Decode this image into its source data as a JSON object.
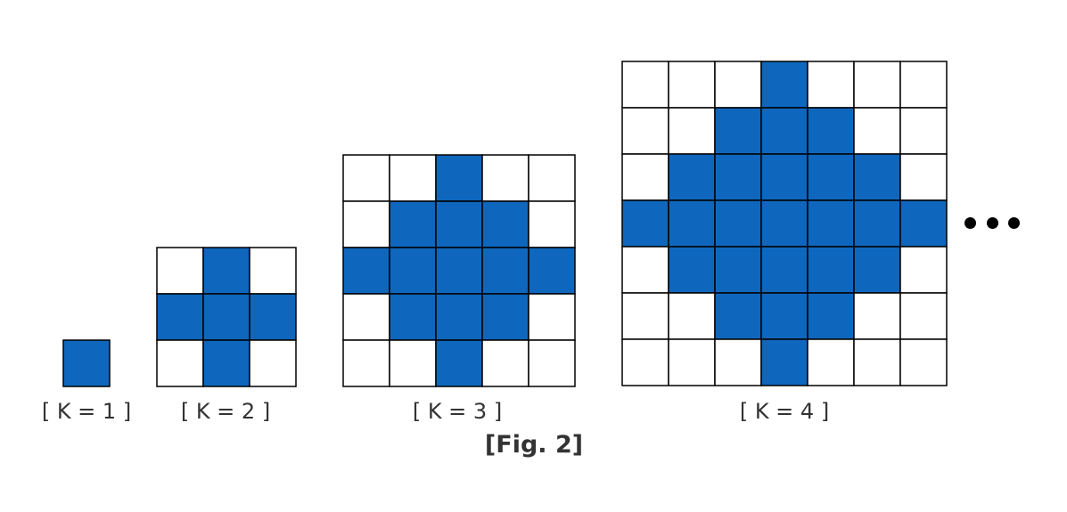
{
  "figure": {
    "caption": "[Fig. 2]",
    "continuation": "ellipsis",
    "colors": {
      "filled": "#0f67bd",
      "empty": "#ffffff",
      "grid_line": "#000000"
    },
    "patterns": [
      {
        "label": "[ K = 1 ]",
        "k": 1,
        "grid_size": 1
      },
      {
        "label": "[ K = 2 ]",
        "k": 2,
        "grid_size": 3
      },
      {
        "label": "[ K = 3 ]",
        "k": 3,
        "grid_size": 5
      },
      {
        "label": "[ K = 4 ]",
        "k": 4,
        "grid_size": 7
      }
    ]
  }
}
